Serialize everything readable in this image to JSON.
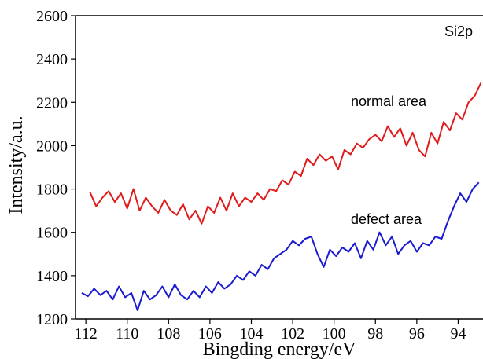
{
  "chart_data": {
    "type": "line",
    "title": "",
    "annotation": "Si2p",
    "xlabel": "Bingding energy/eV",
    "ylabel": "Intensity/a.u.",
    "xlim": [
      112.5,
      92.8
    ],
    "ylim": [
      1200,
      2600
    ],
    "x_reversed": true,
    "grid": false,
    "x_ticks": [
      112,
      110,
      108,
      106,
      104,
      102,
      100,
      98,
      96,
      94
    ],
    "y_ticks": [
      1200,
      1400,
      1600,
      1800,
      2000,
      2200,
      2400,
      2600
    ],
    "x_tick_labels": [
      "112",
      "110",
      "108",
      "106",
      "104",
      "102",
      "100",
      "98",
      "96",
      "94"
    ],
    "y_tick_labels": [
      "1200",
      "1400",
      "1600",
      "1800",
      "2000",
      "2200",
      "2400",
      "2600"
    ],
    "series": [
      {
        "name": "normal area",
        "color": "#e01b1b",
        "x": [
          111.8,
          111.5,
          111.2,
          110.9,
          110.6,
          110.3,
          110.0,
          109.7,
          109.4,
          109.1,
          108.8,
          108.5,
          108.2,
          107.9,
          107.6,
          107.3,
          107.0,
          106.7,
          106.4,
          106.1,
          105.8,
          105.5,
          105.2,
          104.9,
          104.6,
          104.3,
          104.0,
          103.7,
          103.4,
          103.1,
          102.8,
          102.5,
          102.2,
          101.9,
          101.6,
          101.3,
          101.0,
          100.7,
          100.4,
          100.1,
          99.8,
          99.5,
          99.2,
          98.9,
          98.6,
          98.3,
          98.0,
          97.7,
          97.4,
          97.1,
          96.8,
          96.5,
          96.2,
          95.9,
          95.6,
          95.3,
          95.0,
          94.7,
          94.4,
          94.1,
          93.8,
          93.5,
          93.2,
          92.9
        ],
        "values": [
          1785,
          1720,
          1760,
          1790,
          1740,
          1780,
          1710,
          1800,
          1700,
          1760,
          1720,
          1690,
          1750,
          1700,
          1680,
          1730,
          1660,
          1700,
          1640,
          1720,
          1690,
          1760,
          1700,
          1780,
          1720,
          1760,
          1740,
          1780,
          1750,
          1800,
          1790,
          1840,
          1820,
          1880,
          1860,
          1940,
          1910,
          1960,
          1930,
          1950,
          1890,
          1980,
          1960,
          2010,
          1990,
          2030,
          2050,
          2020,
          2090,
          2040,
          2080,
          2000,
          2060,
          1980,
          1950,
          2060,
          2010,
          2110,
          2070,
          2150,
          2120,
          2200,
          2230,
          2290
        ]
      },
      {
        "name": "defect area",
        "color": "#1a1ad0",
        "x": [
          112.2,
          111.9,
          111.6,
          111.3,
          111.0,
          110.7,
          110.4,
          110.1,
          109.8,
          109.5,
          109.2,
          108.9,
          108.6,
          108.3,
          108.0,
          107.7,
          107.4,
          107.1,
          106.8,
          106.5,
          106.2,
          105.9,
          105.6,
          105.3,
          105.0,
          104.7,
          104.4,
          104.1,
          103.8,
          103.5,
          103.2,
          102.9,
          102.6,
          102.3,
          102.0,
          101.7,
          101.4,
          101.1,
          100.8,
          100.5,
          100.2,
          99.9,
          99.6,
          99.3,
          99.0,
          98.7,
          98.4,
          98.1,
          97.8,
          97.5,
          97.2,
          96.9,
          96.6,
          96.3,
          96.0,
          95.7,
          95.4,
          95.1,
          94.8,
          94.5,
          94.2,
          93.9,
          93.6,
          93.3,
          93.0
        ],
        "values": [
          1320,
          1305,
          1340,
          1310,
          1330,
          1290,
          1350,
          1300,
          1320,
          1240,
          1330,
          1290,
          1310,
          1350,
          1300,
          1360,
          1310,
          1290,
          1330,
          1300,
          1350,
          1320,
          1370,
          1340,
          1360,
          1400,
          1380,
          1420,
          1400,
          1450,
          1430,
          1480,
          1500,
          1520,
          1560,
          1540,
          1570,
          1580,
          1500,
          1440,
          1520,
          1490,
          1530,
          1510,
          1550,
          1480,
          1560,
          1520,
          1600,
          1540,
          1580,
          1500,
          1540,
          1560,
          1510,
          1550,
          1540,
          1580,
          1570,
          1650,
          1720,
          1780,
          1740,
          1800,
          1830
        ]
      }
    ]
  }
}
